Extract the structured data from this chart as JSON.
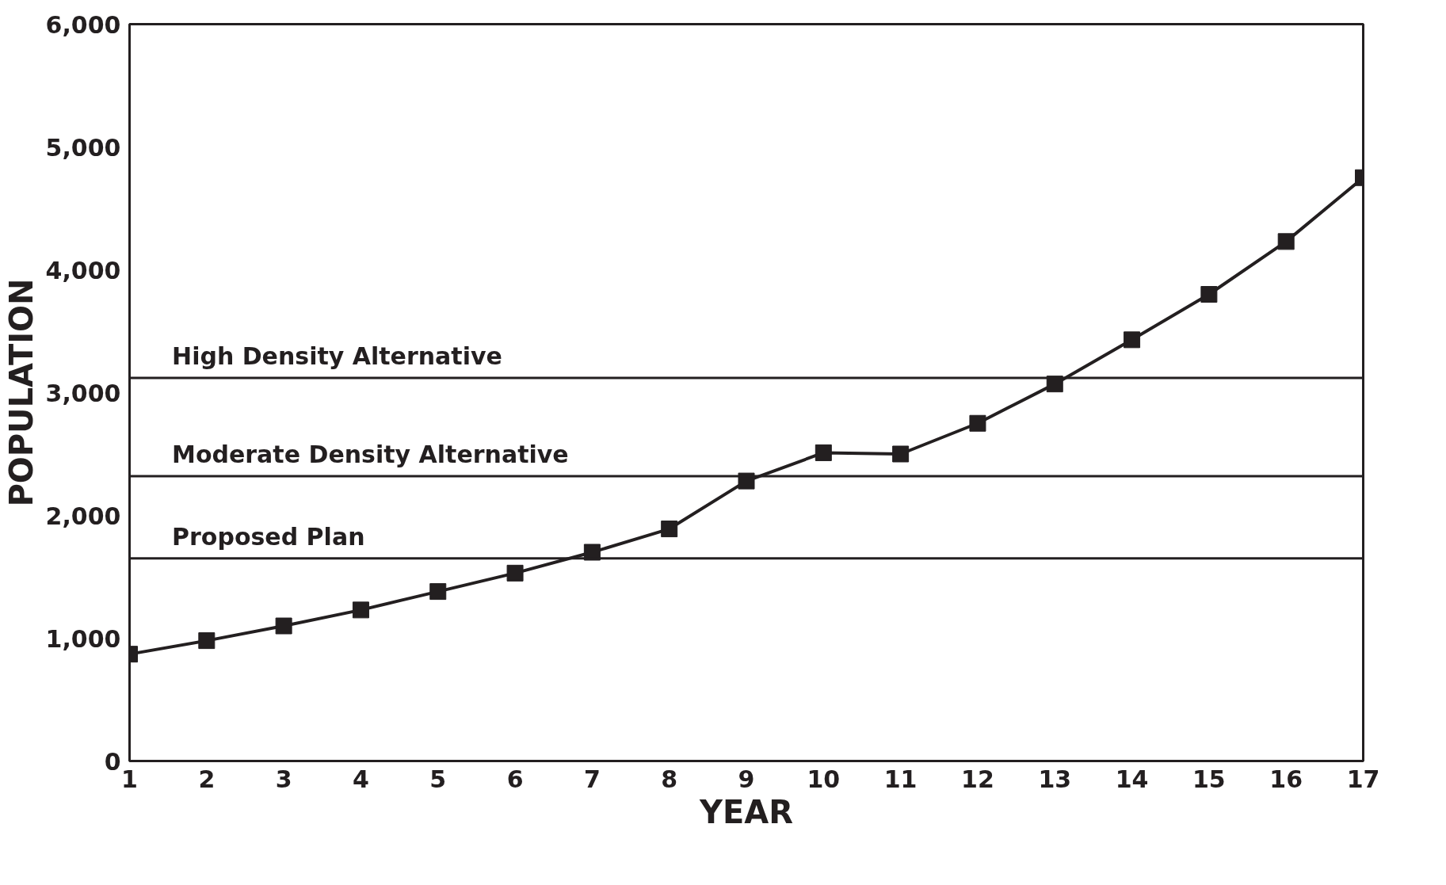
{
  "chart_data": {
    "type": "line",
    "xlabel": "YEAR",
    "ylabel": "POPULATION",
    "x": [
      1,
      2,
      3,
      4,
      5,
      6,
      7,
      8,
      9,
      10,
      11,
      12,
      13,
      14,
      15,
      16,
      17
    ],
    "series": [
      {
        "color": "#231f20",
        "values": [
          870,
          980,
          1100,
          1230,
          1380,
          1530,
          1700,
          1890,
          2280,
          2510,
          2500,
          2750,
          3070,
          3430,
          3800,
          4230,
          4750
        ]
      }
    ],
    "xlim": [
      1,
      17
    ],
    "xticks": [
      1,
      2,
      3,
      4,
      5,
      6,
      7,
      8,
      9,
      10,
      11,
      12,
      13,
      14,
      15,
      16,
      17
    ],
    "ylim": [
      0,
      6000
    ],
    "yticks": [
      0,
      {
        "value": 1000,
        "label": "1,000"
      },
      {
        "value": 2000,
        "label": "2,000"
      },
      {
        "value": 3000,
        "label": "3,000"
      },
      {
        "value": 4000,
        "label": "4,000"
      },
      {
        "value": 5000,
        "label": "5,000"
      },
      {
        "value": 6000,
        "label": "6,000"
      }
    ],
    "ref_lines": [
      {
        "axis": "y",
        "value": 3120,
        "label": "High Density Alternative",
        "color": "#231f20"
      },
      {
        "axis": "y",
        "value": 2320,
        "label": "Moderate Density Alternative",
        "color": "#231f20"
      },
      {
        "axis": "y",
        "value": 1650,
        "label": "Proposed Plan",
        "color": "#231f20"
      }
    ],
    "marker": "square",
    "line_style": "solid",
    "grid": false
  }
}
